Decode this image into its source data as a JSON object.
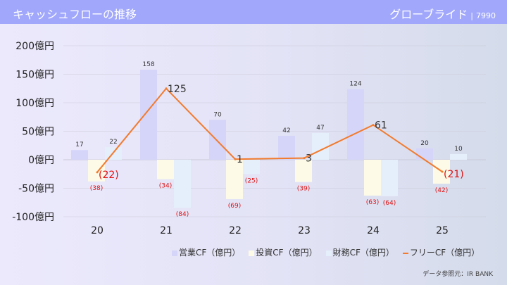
{
  "header": {
    "title": "キャッシュフローの推移",
    "company": "グローブライド",
    "separator": "|",
    "code": "7990"
  },
  "source": "データ参照元：IR BANK",
  "chart_data": {
    "type": "bar+line",
    "title": "キャッシュフローの推移",
    "categories": [
      "20",
      "21",
      "22",
      "23",
      "24",
      "25"
    ],
    "ylim": [
      -100,
      200
    ],
    "yticks": [
      200,
      150,
      100,
      50,
      0,
      -50,
      -100
    ],
    "ytick_labels": [
      "200億円",
      "150億円",
      "100億円",
      "50億円",
      "0億円",
      "-50億円",
      "-100億円"
    ],
    "grid": true,
    "legend_position": "bottom-right",
    "series": [
      {
        "name": "営業CF（億円）",
        "type": "bar",
        "color": "#d5d5f9",
        "values": [
          17,
          158,
          70,
          42,
          124,
          20
        ],
        "labels": [
          "17",
          "158",
          "70",
          "42",
          "124",
          "20"
        ]
      },
      {
        "name": "投資CF（億円）",
        "type": "bar",
        "color": "#fdfbe7",
        "values": [
          -38,
          -34,
          -69,
          -39,
          -63,
          -42
        ],
        "labels": [
          "(38)",
          "(34)",
          "(69)",
          "(39)",
          "(63)",
          "(42)"
        ]
      },
      {
        "name": "財務CF（億円）",
        "type": "bar",
        "color": "#e5effb",
        "values": [
          22,
          -84,
          -25,
          47,
          -64,
          10
        ],
        "labels": [
          "22",
          "(84)",
          "(25)",
          "47",
          "(64)",
          "10"
        ]
      },
      {
        "name": "フリーCF（億円）",
        "type": "line",
        "color": "#f27b2e",
        "values": [
          -22,
          125,
          1,
          3,
          61,
          -21
        ],
        "labels": [
          "(22)",
          "125",
          "1",
          "3",
          "61",
          "(21)"
        ]
      }
    ]
  }
}
